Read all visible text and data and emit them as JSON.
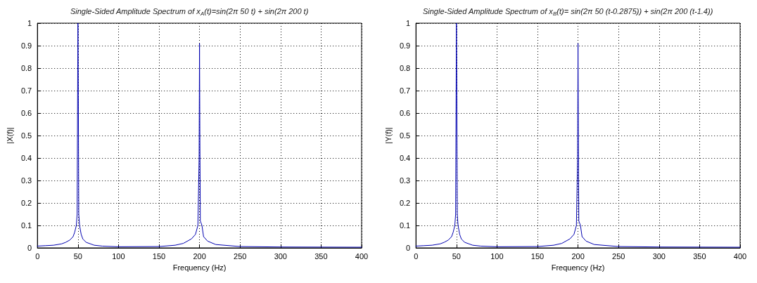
{
  "chart_data": [
    {
      "type": "line",
      "title": "Single-Sided Amplitude Spectrum of x$_{A}$(t)=sin(2π 50 t) + sin(2π 200 t)",
      "xlabel": "Frequency (Hz)",
      "ylabel": "|X(f)|",
      "xlim": [
        0,
        400
      ],
      "xticks": [
        0,
        50,
        100,
        150,
        200,
        250,
        300,
        350,
        400
      ],
      "ylim": [
        0,
        1
      ],
      "yticks": [
        0,
        0.1,
        0.2,
        0.3,
        0.4,
        0.5,
        0.6,
        0.7,
        0.8,
        0.9,
        1
      ],
      "grid": true,
      "marker": "none",
      "line_style": "solid",
      "series": [
        {
          "color": "#0000b0",
          "x": [
            0,
            10,
            20,
            30,
            35,
            40,
            44,
            46,
            48,
            49,
            49.5,
            50,
            50.5,
            51,
            52,
            54,
            56,
            60,
            70,
            80,
            100,
            150,
            170,
            180,
            190,
            195,
            198,
            199.5,
            200,
            200.5,
            201,
            203,
            205,
            210,
            220,
            250,
            300,
            400
          ],
          "values": [
            0.008,
            0.01,
            0.012,
            0.018,
            0.025,
            0.035,
            0.05,
            0.07,
            0.1,
            0.15,
            0.6,
            1,
            0.68,
            0.15,
            0.1,
            0.06,
            0.04,
            0.025,
            0.012,
            0.008,
            0.005,
            0.006,
            0.012,
            0.02,
            0.04,
            0.06,
            0.1,
            0.4,
            0.91,
            0.45,
            0.12,
            0.1,
            0.05,
            0.03,
            0.015,
            0.006,
            0.004,
            0.003
          ]
        }
      ]
    },
    {
      "type": "line",
      "title": "Single-Sided Amplitude Spectrum of x$_{B}$(t)= sin(2π 50 (t-0.2875)) + sin(2π 200 (t-1.4))",
      "xlabel": "Frequency (Hz)",
      "ylabel": "|Y(f)|",
      "xlim": [
        0,
        400
      ],
      "xticks": [
        0,
        50,
        100,
        150,
        200,
        250,
        300,
        350,
        400
      ],
      "ylim": [
        0,
        1
      ],
      "yticks": [
        0,
        0.1,
        0.2,
        0.3,
        0.4,
        0.5,
        0.6,
        0.7,
        0.8,
        0.9,
        1
      ],
      "grid": true,
      "marker": "none",
      "line_style": "solid",
      "series": [
        {
          "color": "#0000b0",
          "x": [
            0,
            10,
            20,
            30,
            35,
            40,
            44,
            46,
            48,
            49,
            49.5,
            50,
            50.5,
            51,
            52,
            54,
            56,
            60,
            70,
            80,
            100,
            150,
            170,
            180,
            190,
            195,
            198,
            199.5,
            200,
            200.5,
            201,
            203,
            205,
            210,
            220,
            250,
            300,
            400
          ],
          "values": [
            0.008,
            0.01,
            0.012,
            0.018,
            0.025,
            0.035,
            0.05,
            0.07,
            0.1,
            0.15,
            0.6,
            1,
            0.68,
            0.15,
            0.1,
            0.06,
            0.04,
            0.025,
            0.012,
            0.008,
            0.005,
            0.006,
            0.012,
            0.02,
            0.04,
            0.06,
            0.1,
            0.4,
            0.91,
            0.45,
            0.12,
            0.1,
            0.05,
            0.03,
            0.015,
            0.006,
            0.004,
            0.003
          ]
        }
      ]
    }
  ]
}
